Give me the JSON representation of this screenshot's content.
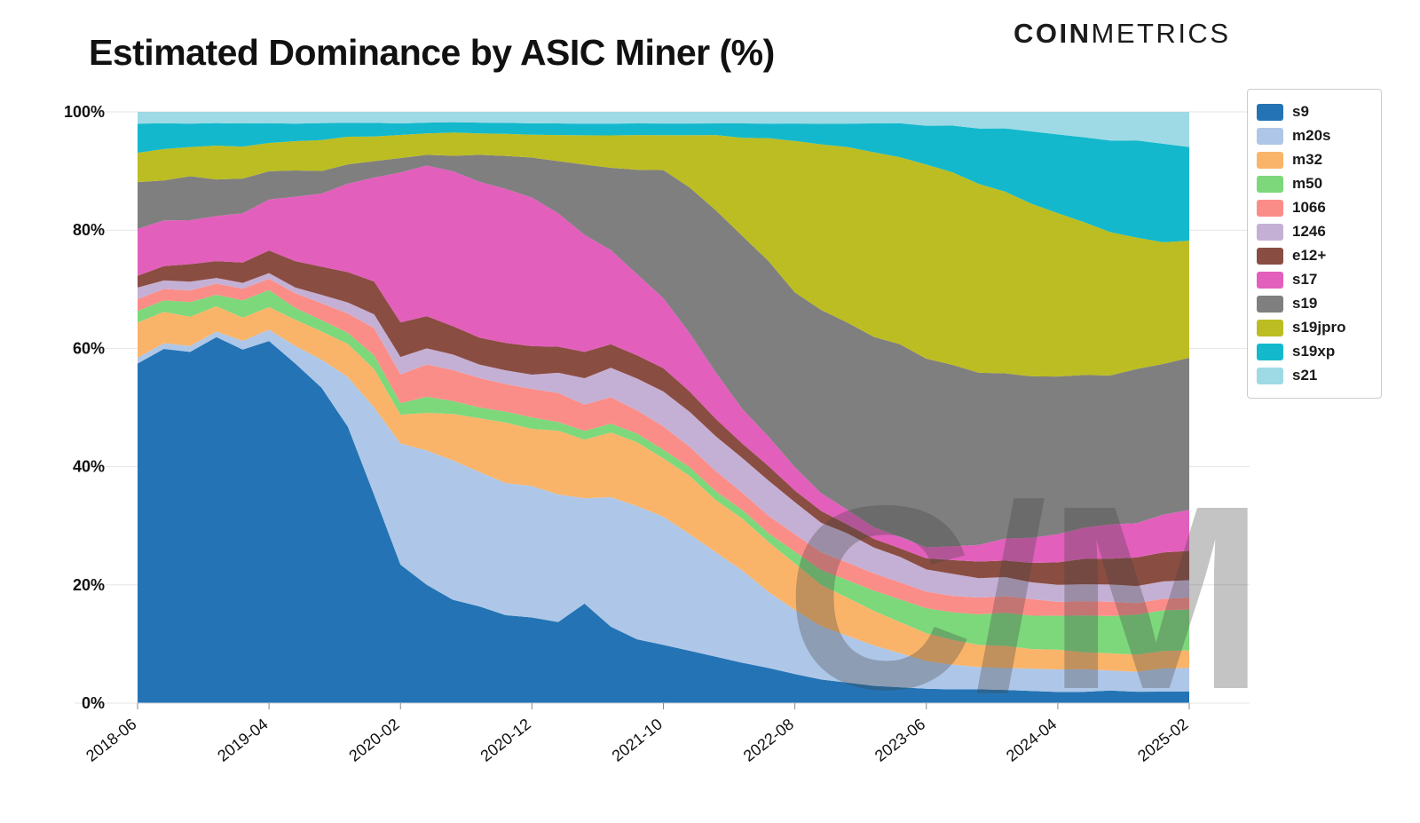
{
  "header": {
    "title": "Estimated Dominance by ASIC Miner (%)",
    "logo": {
      "coin": "COIN",
      "metrics": "METRICS"
    }
  },
  "watermark": "C/M",
  "chart_data": {
    "type": "area",
    "stacked": true,
    "normalized_to_100": true,
    "title": "Estimated Dominance by ASIC Miner (%)",
    "xlabel": "",
    "ylabel": "",
    "ylim": [
      0,
      100
    ],
    "grid": "horizontal",
    "legend_position": "right-outside",
    "x_start": "2018-06",
    "x_end": "2025-02",
    "x_step_months": 2,
    "y_tick_values": [
      0,
      20,
      40,
      60,
      80,
      100
    ],
    "y_tick_labels": [
      "0%",
      "20%",
      "40%",
      "60%",
      "80%",
      "100%"
    ],
    "x_ticks": [
      {
        "i": 0,
        "label": "2018-06"
      },
      {
        "i": 5,
        "label": "2019-04"
      },
      {
        "i": 10,
        "label": "2020-02"
      },
      {
        "i": 15,
        "label": "2020-12"
      },
      {
        "i": 20,
        "label": "2021-10"
      },
      {
        "i": 25,
        "label": "2022-08"
      },
      {
        "i": 30,
        "label": "2023-06"
      },
      {
        "i": 35,
        "label": "2024-04"
      },
      {
        "i": 40,
        "label": "2025-02"
      }
    ],
    "series": [
      {
        "name": "s9",
        "color": "#2474b5",
        "values": [
          58,
          62,
          60,
          65,
          61,
          64,
          58,
          56,
          50,
          38,
          24,
          22,
          20,
          18,
          16,
          15,
          14,
          17,
          13,
          11,
          10,
          9,
          8,
          7,
          6,
          5,
          4,
          3.5,
          3,
          2.8,
          2.6,
          2.5,
          2.5,
          2.4,
          2.2,
          2,
          2,
          2.2,
          2,
          2,
          2
        ]
      },
      {
        "name": "m20s",
        "color": "#aec7e8",
        "values": [
          1,
          1,
          1,
          1,
          1.5,
          2,
          3,
          5,
          9,
          16,
          21,
          25,
          27,
          25,
          24,
          23,
          22,
          18,
          22,
          23,
          22,
          20,
          18,
          16,
          13,
          11,
          9,
          8,
          7,
          6,
          5,
          4.5,
          4,
          4,
          4,
          4,
          4,
          3.5,
          3.5,
          4,
          4
        ]
      },
      {
        "name": "m32",
        "color": "#f9b46a",
        "values": [
          6,
          5.5,
          5,
          4.5,
          4,
          4,
          4.5,
          5,
          6,
          7,
          5,
          7,
          9,
          10,
          11,
          10,
          11,
          10,
          11,
          11,
          10,
          10,
          9,
          9,
          8.5,
          8,
          7,
          6.5,
          6,
          5.5,
          5,
          4.5,
          4,
          4,
          3.5,
          3.5,
          3,
          3,
          3,
          3,
          3
        ]
      },
      {
        "name": "m50",
        "color": "#7cd87b",
        "values": [
          2,
          2,
          2.5,
          2,
          3,
          3,
          2,
          2,
          2,
          2.5,
          2,
          3,
          2.5,
          2,
          2,
          2,
          1.5,
          1.5,
          1.5,
          1.5,
          1.5,
          1.5,
          1.5,
          1.5,
          1.5,
          2,
          2.5,
          3,
          3.5,
          4,
          4.5,
          5,
          5.5,
          6,
          6,
          6,
          6.5,
          6.5,
          7,
          7,
          7
        ]
      },
      {
        "name": "1066",
        "color": "#fb8d88",
        "values": [
          2,
          2,
          2,
          2,
          2,
          2,
          2.5,
          3,
          3.5,
          5,
          5,
          6,
          6,
          5.5,
          5,
          5,
          5,
          4.5,
          4.5,
          4,
          4,
          3.5,
          3.5,
          3,
          3,
          3,
          3,
          3,
          3,
          3,
          3,
          3,
          3,
          3,
          3,
          2.5,
          2.5,
          2.5,
          2,
          2,
          2
        ]
      },
      {
        "name": "1246",
        "color": "#c5b0d5",
        "values": [
          2,
          1.5,
          1.5,
          1,
          1,
          1,
          1,
          1.5,
          2,
          2.5,
          3,
          3,
          3,
          2.5,
          2.5,
          2.5,
          3.5,
          4.5,
          5,
          5.5,
          6,
          6,
          6,
          6,
          6,
          5.5,
          5,
          5,
          4.5,
          4.5,
          4,
          4,
          3.5,
          3.5,
          3,
          3,
          3,
          3,
          3,
          3,
          3
        ]
      },
      {
        "name": "e12+",
        "color": "#8a4d42",
        "values": [
          2,
          2.5,
          3,
          3,
          3.5,
          4,
          4.5,
          5,
          5.5,
          6,
          6,
          6,
          5.5,
          5,
          5,
          5,
          4.5,
          4.5,
          4,
          4,
          4,
          3.5,
          3,
          2.5,
          2.5,
          2,
          2,
          1.5,
          1.5,
          1.5,
          2,
          2.5,
          3,
          3,
          3.5,
          4,
          4.5,
          4.5,
          5,
          5,
          5
        ]
      },
      {
        "name": "s17",
        "color": "#e35fbc",
        "values": [
          8,
          8,
          7.5,
          8,
          8.5,
          9,
          11,
          13,
          16,
          19,
          26,
          28,
          30,
          29,
          28,
          26,
          23,
          20,
          16,
          14,
          12,
          10,
          8,
          6,
          5,
          4,
          3,
          2.5,
          2,
          2,
          2,
          2.5,
          3,
          4,
          4.5,
          5,
          5.5,
          6,
          6,
          6.5,
          7
        ]
      },
      {
        "name": "s19",
        "color": "#7f7f7f",
        "values": [
          8,
          7,
          7.5,
          6.5,
          6,
          5,
          4.5,
          4,
          3.5,
          3,
          2.5,
          2,
          3,
          5,
          6,
          7,
          9,
          12,
          14,
          18,
          22,
          25,
          28,
          30,
          30,
          30,
          31,
          32,
          33,
          34,
          34,
          33,
          31,
          30,
          29,
          28,
          27,
          26,
          27,
          26,
          26
        ]
      },
      {
        "name": "s19jpro",
        "color": "#bcbd22",
        "values": [
          5,
          5.5,
          5,
          6,
          5.5,
          5,
          5,
          5.5,
          5,
          4.5,
          4,
          4,
          4.5,
          4,
          4,
          4,
          4.5,
          5,
          5.5,
          6,
          6,
          9,
          13,
          17,
          21,
          26,
          28,
          30,
          32,
          33,
          35,
          35,
          34,
          33,
          31,
          29,
          27,
          25,
          23,
          21,
          20
        ]
      },
      {
        "name": "s19xp",
        "color": "#14b8cc",
        "values": [
          5,
          4.5,
          4,
          4,
          4,
          3.5,
          3,
          3,
          2.5,
          2.5,
          2,
          2,
          2,
          2,
          2,
          2,
          2,
          2,
          2,
          2,
          2,
          2,
          2,
          2.5,
          2.5,
          3,
          3.5,
          4,
          5,
          6,
          7,
          8.5,
          10,
          11.5,
          13,
          14,
          15,
          16,
          17,
          17,
          16
        ]
      },
      {
        "name": "s21",
        "color": "#9edae5",
        "values": [
          2,
          2,
          2,
          2,
          2,
          2,
          2,
          2,
          2,
          2,
          2,
          2,
          2,
          2,
          2,
          2,
          2,
          2,
          2,
          2,
          2,
          2,
          2,
          2,
          2,
          2,
          2,
          2,
          2,
          2,
          2.5,
          2.5,
          3,
          3,
          3.5,
          4,
          4.5,
          5,
          5,
          5.5,
          6
        ]
      }
    ]
  }
}
